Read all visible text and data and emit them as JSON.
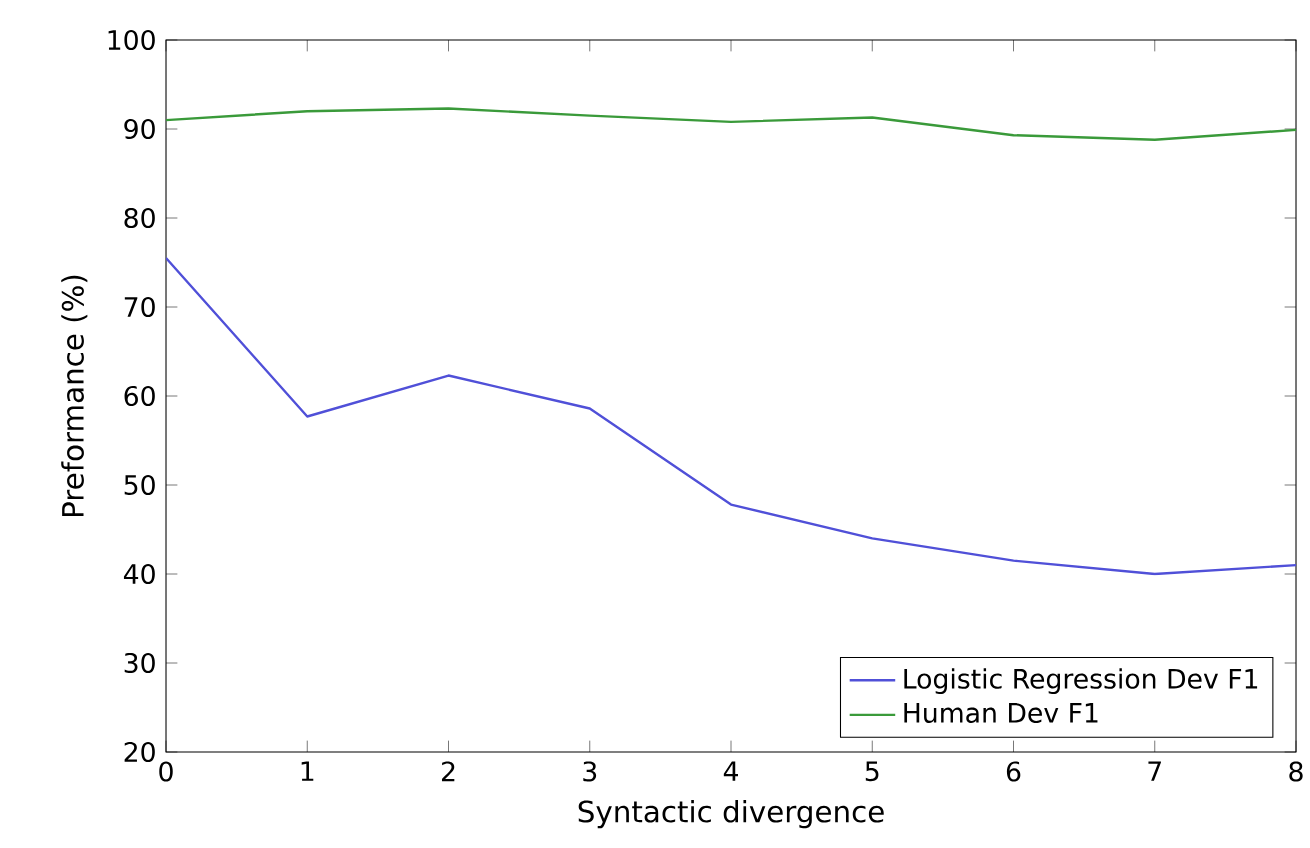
{
  "chart_data": {
    "type": "line",
    "xlabel": "Syntactic divergence",
    "ylabel": "Preformance (%)",
    "x": [
      0,
      1,
      2,
      3,
      4,
      5,
      6,
      7,
      8
    ],
    "series": [
      {
        "name": "Logistic Regression Dev F1",
        "color": "#5050d8",
        "values": [
          75.5,
          57.7,
          62.3,
          58.6,
          47.8,
          44.0,
          41.5,
          40.0,
          41.0
        ]
      },
      {
        "name": "Human Dev F1",
        "color": "#3a9a3a",
        "values": [
          91.0,
          92.0,
          92.3,
          91.5,
          90.8,
          91.3,
          89.3,
          88.8,
          89.9
        ]
      }
    ],
    "xlim": [
      0,
      8
    ],
    "ylim": [
      20,
      100
    ],
    "xticks": [
      0,
      1,
      2,
      3,
      4,
      5,
      6,
      7,
      8
    ],
    "yticks": [
      20,
      30,
      40,
      50,
      60,
      70,
      80,
      90,
      100
    ],
    "grid": false,
    "legend": "bottom right",
    "marker": "none",
    "line_style": "solid"
  }
}
